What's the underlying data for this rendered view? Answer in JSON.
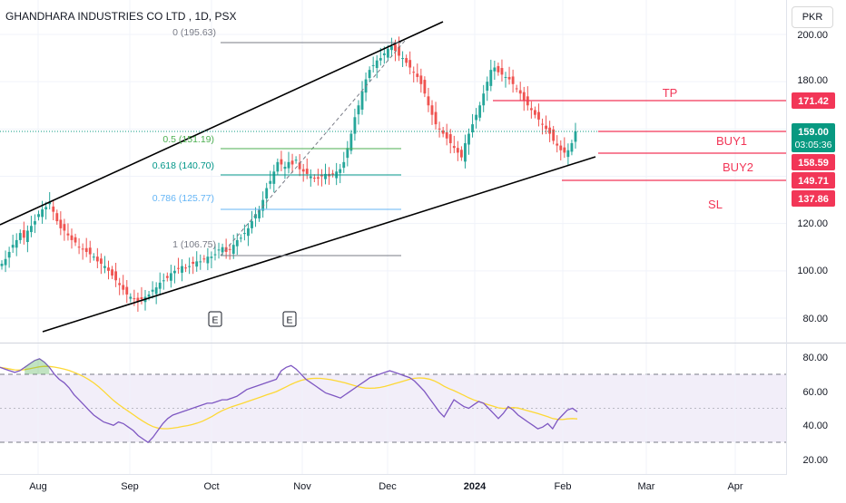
{
  "header": {
    "symbol_title": "GHANDHARA INDUSTRIES CO LTD , 1D, PSX",
    "currency": "PKR"
  },
  "colors": {
    "up": "#26a69a",
    "down": "#ef5350",
    "level_line": "#f23657",
    "level_text": "#f23657",
    "channel": "#000000",
    "rsi_line": "#7e57c2",
    "rsi_ma": "#fdd835",
    "rsi_band": "#ede7f6",
    "price_badge": "#089981",
    "fib_0": "#787b86",
    "fib_05": "#4caf50",
    "fib_0618": "#009688",
    "fib_0786": "#64b5f6",
    "fib_1": "#787b86"
  },
  "price_axis": {
    "ticks": [
      "200.00",
      "180.00",
      "160.00",
      "140.00",
      "120.00",
      "100.00",
      "80.00"
    ],
    "current_price": "159.00",
    "countdown": "03:05:36",
    "badges": [
      "171.42",
      "158.59",
      "149.71",
      "137.86"
    ]
  },
  "rsi_axis": {
    "ticks": [
      "80.00",
      "60.00",
      "40.00",
      "20.00"
    ]
  },
  "time_axis": {
    "labels": [
      "Aug",
      "Sep",
      "Oct",
      "Nov",
      "Dec",
      "2024",
      "Jan",
      "Feb",
      "Mar",
      "Apr"
    ]
  },
  "fib_labels": {
    "f0": "0 (195.63)",
    "f05": "0.5 (151.19)",
    "f0618": "0.618 (140.70)",
    "f0786": "0.786 (125.77)",
    "f1": "1 (106.75)"
  },
  "trade_labels": {
    "tp": "TP",
    "buy1": "BUY1",
    "buy2": "BUY2",
    "sl": "SL"
  },
  "earnings_markers": [
    "E",
    "E"
  ],
  "chart_data": {
    "type": "candlestick",
    "title": "GHANDHARA INDUSTRIES CO LTD , 1D, PSX",
    "currency": "PKR",
    "y_range": [
      74,
      204
    ],
    "rsi_range": [
      15,
      90
    ],
    "x_axis_labels": [
      "Aug",
      "Sep",
      "Oct",
      "Nov",
      "Dec",
      "2024",
      "Jan",
      "Feb",
      "Mar",
      "Apr"
    ],
    "close_series": [
      103,
      105,
      108,
      111,
      113,
      116,
      114,
      117,
      119,
      121,
      124,
      126,
      127,
      129,
      125,
      121,
      118,
      117,
      115,
      113,
      112,
      110,
      109,
      108,
      107,
      106,
      104,
      103,
      102,
      100,
      98,
      96,
      94,
      92,
      90,
      89,
      88,
      87,
      88,
      89,
      90,
      92,
      93,
      95,
      96,
      97,
      99,
      100,
      101,
      102,
      101,
      102,
      103,
      104,
      104,
      105,
      106,
      106,
      107,
      109,
      110,
      108,
      109,
      111,
      113,
      114,
      116,
      118,
      121,
      124,
      126,
      130,
      135,
      138,
      142,
      146,
      145,
      144,
      146,
      145,
      147,
      143,
      142,
      141,
      140,
      139,
      139,
      140,
      141,
      140,
      141,
      142,
      143,
      146,
      152,
      158,
      165,
      170,
      176,
      181,
      185,
      187,
      189,
      190,
      192,
      194,
      195,
      193,
      191,
      190,
      188,
      186,
      184,
      182,
      179,
      175,
      170,
      166,
      162,
      160,
      158,
      156,
      154,
      152,
      150,
      148,
      154,
      158,
      162,
      166,
      170,
      175,
      180,
      185,
      186,
      184,
      183,
      182,
      181,
      179,
      177,
      175,
      172,
      170,
      168,
      166,
      164,
      162,
      160,
      158,
      155,
      153,
      151,
      150,
      151,
      154,
      159
    ],
    "rsi_series": [
      74,
      73,
      72,
      71,
      72,
      74,
      76,
      78,
      79,
      77,
      74,
      70,
      67,
      65,
      62,
      58,
      55,
      52,
      49,
      46,
      44,
      42,
      41,
      40,
      42,
      41,
      39,
      37,
      34,
      32,
      30,
      33,
      37,
      41,
      44,
      46,
      47,
      48,
      49,
      50,
      51,
      52,
      53,
      53,
      54,
      55,
      55,
      56,
      57,
      59,
      61,
      62,
      63,
      64,
      65,
      66,
      67,
      72,
      74,
      75,
      73,
      70,
      67,
      65,
      63,
      61,
      59,
      58,
      57,
      56,
      58,
      60,
      62,
      64,
      66,
      68,
      69,
      70,
      71,
      72,
      71,
      70,
      69,
      68,
      66,
      63,
      60,
      56,
      52,
      48,
      45,
      50,
      55,
      53,
      51,
      50,
      52,
      54,
      53,
      50,
      47,
      44,
      47,
      51,
      49,
      46,
      44,
      42,
      40,
      38,
      39,
      41,
      38,
      43,
      46,
      49,
      50,
      48
    ],
    "fib_levels": [
      {
        "ratio": 0,
        "price": 195.63
      },
      {
        "ratio": 0.5,
        "price": 151.19
      },
      {
        "ratio": 0.618,
        "price": 140.7
      },
      {
        "ratio": 0.786,
        "price": 125.77
      },
      {
        "ratio": 1,
        "price": 106.75
      }
    ],
    "trade_levels": [
      {
        "name": "TP",
        "price": 171.42
      },
      {
        "name": "BUY1",
        "price": 158.59
      },
      {
        "name": "BUY2",
        "price": 149.71
      },
      {
        "name": "SL",
        "price": 137.86
      }
    ],
    "last_price": 159.0,
    "rsi_bands": [
      70,
      50,
      30
    ]
  }
}
